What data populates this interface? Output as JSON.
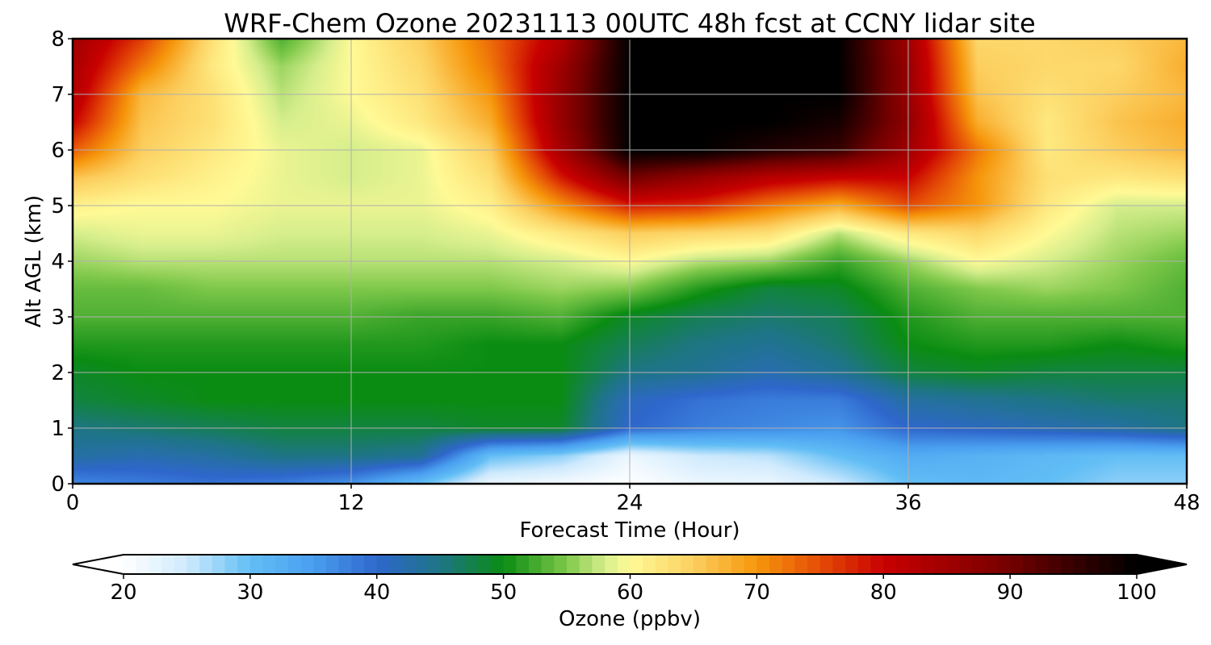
{
  "chart_data": {
    "type": "heatmap",
    "title": "WRF-Chem Ozone  20231113 00UTC 48h fcst at CCNY lidar site",
    "xlabel": "Forecast Time (Hour)",
    "ylabel": "Alt AGL (km)",
    "xlim": [
      0,
      48
    ],
    "ylim": [
      0,
      8
    ],
    "x_ticks": [
      0,
      12,
      24,
      36,
      48
    ],
    "y_ticks": [
      0,
      1,
      2,
      3,
      4,
      5,
      6,
      7,
      8
    ],
    "grid": true,
    "x": [
      0,
      3,
      6,
      9,
      12,
      15,
      18,
      21,
      24,
      27,
      30,
      33,
      36,
      39,
      42,
      45,
      48
    ],
    "y": [
      0,
      0.5,
      1,
      1.5,
      2,
      2.5,
      3,
      3.5,
      4,
      4.5,
      5,
      5.5,
      6,
      6.5,
      7,
      7.5,
      8
    ],
    "z_unit": "ppbv",
    "z": [
      [
        37,
        38,
        39,
        38,
        36,
        30,
        22,
        21,
        20,
        22,
        22,
        25,
        30,
        31,
        30,
        28,
        28
      ],
      [
        43,
        42,
        43,
        45,
        45,
        44,
        30,
        28,
        22,
        25,
        26,
        30,
        33,
        32,
        31,
        30,
        30
      ],
      [
        45,
        46,
        47,
        48,
        48,
        48,
        49,
        49,
        40,
        38,
        37,
        36,
        40,
        41,
        42,
        43,
        45
      ],
      [
        48,
        49,
        50,
        50,
        50,
        50,
        50,
        50,
        41,
        39,
        38,
        38,
        43,
        44,
        45,
        46,
        46
      ],
      [
        49,
        50,
        50,
        50,
        50,
        50,
        50,
        50,
        45,
        44,
        42,
        44,
        48,
        49,
        48,
        48,
        48
      ],
      [
        51,
        51,
        51,
        51,
        51,
        51,
        50,
        50,
        47,
        45,
        44,
        46,
        50,
        51,
        51,
        50,
        51
      ],
      [
        53,
        53,
        53,
        53,
        53,
        52,
        52,
        53,
        49,
        47,
        46,
        47,
        51,
        53,
        53,
        53,
        53
      ],
      [
        54,
        54,
        55,
        55,
        55,
        55,
        55,
        56,
        55,
        51,
        48,
        49,
        53,
        55,
        56,
        55,
        53
      ],
      [
        56,
        57,
        57,
        57,
        57,
        57,
        57,
        58,
        60,
        57,
        56,
        52,
        56,
        60,
        58,
        56,
        54
      ],
      [
        58,
        59,
        59,
        58,
        58,
        58,
        59,
        62,
        65,
        64,
        63,
        57,
        62,
        64,
        60,
        57,
        56
      ],
      [
        61,
        60,
        60,
        59,
        59,
        59,
        61,
        70,
        78,
        77,
        72,
        68,
        75,
        70,
        62,
        58,
        58
      ],
      [
        66,
        63,
        61,
        59,
        58,
        59,
        63,
        78,
        90,
        86,
        82,
        80,
        80,
        70,
        63,
        62,
        63
      ],
      [
        74,
        65,
        62,
        59,
        58,
        59,
        65,
        84,
        100,
        100,
        97,
        95,
        85,
        72,
        62,
        65,
        67
      ],
      [
        80,
        66,
        63,
        58,
        59,
        62,
        68,
        86,
        100,
        100,
        100,
        98,
        87,
        68,
        62,
        66,
        68
      ],
      [
        83,
        67,
        63,
        57,
        60,
        63,
        70,
        86,
        100,
        100,
        100,
        100,
        86,
        66,
        63,
        65,
        67
      ],
      [
        84,
        72,
        62,
        56,
        60,
        64,
        72,
        85,
        100,
        100,
        100,
        100,
        86,
        65,
        64,
        64,
        68
      ],
      [
        85,
        76,
        63,
        53,
        60,
        65,
        73,
        82,
        100,
        100,
        100,
        100,
        85,
        64,
        64,
        65,
        67
      ]
    ],
    "colorbar": {
      "label": "Ozone  (ppbv)",
      "min": 20,
      "max": 100,
      "ticks": [
        20,
        30,
        40,
        50,
        60,
        70,
        80,
        90,
        100
      ],
      "extend": "both",
      "colors": [
        {
          "v": 20,
          "c": "#ffffff"
        },
        {
          "v": 25,
          "c": "#cfeafd"
        },
        {
          "v": 30,
          "c": "#62bef5"
        },
        {
          "v": 35,
          "c": "#4a9ff0"
        },
        {
          "v": 40,
          "c": "#2f67cc"
        },
        {
          "v": 45,
          "c": "#1e7585"
        },
        {
          "v": 50,
          "c": "#0a8c12"
        },
        {
          "v": 55,
          "c": "#7ec84a"
        },
        {
          "v": 58,
          "c": "#d6ee8c"
        },
        {
          "v": 60,
          "c": "#fffa96"
        },
        {
          "v": 65,
          "c": "#fccf5f"
        },
        {
          "v": 70,
          "c": "#f6960b"
        },
        {
          "v": 75,
          "c": "#e54c06"
        },
        {
          "v": 80,
          "c": "#c80000"
        },
        {
          "v": 85,
          "c": "#a00000"
        },
        {
          "v": 90,
          "c": "#740000"
        },
        {
          "v": 95,
          "c": "#360000"
        },
        {
          "v": 100,
          "c": "#000000"
        }
      ]
    }
  }
}
